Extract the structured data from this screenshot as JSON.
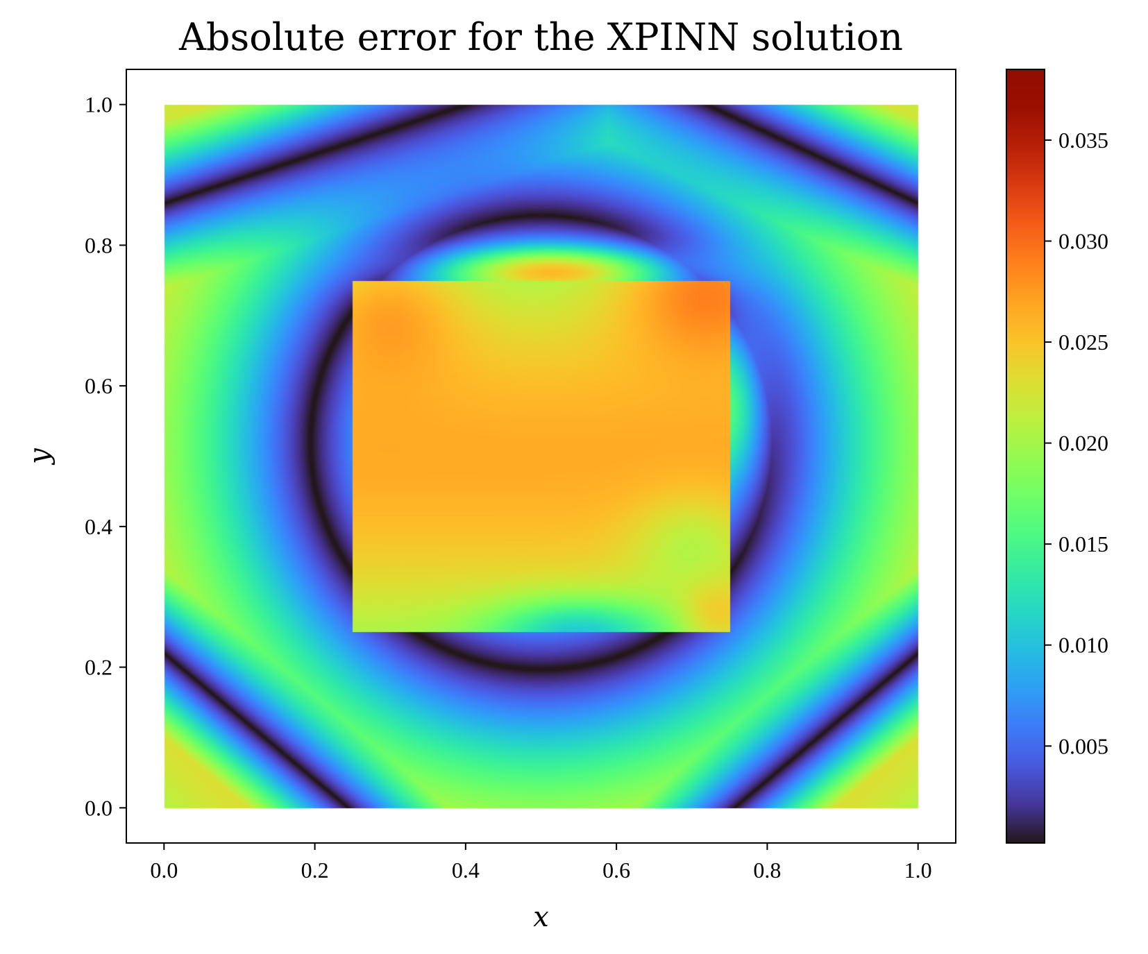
{
  "chart_data": {
    "type": "heatmap",
    "title": "Absolute error for the XPINN solution",
    "xlabel": "x",
    "ylabel": "y",
    "xlim": [
      -0.05,
      1.05
    ],
    "ylim": [
      -0.05,
      1.05
    ],
    "x_ticks": [
      "0.0",
      "0.2",
      "0.4",
      "0.6",
      "0.8",
      "1.0"
    ],
    "y_ticks": [
      "0.0",
      "0.2",
      "0.4",
      "0.6",
      "0.8",
      "1.0"
    ],
    "domain": {
      "x": [
        0,
        1
      ],
      "y": [
        0,
        1
      ]
    },
    "subdomain": {
      "x": [
        0.25,
        0.75
      ],
      "y": [
        0.25,
        0.75
      ]
    },
    "colormap": "turbo",
    "colorbar": {
      "range": [
        0.0002,
        0.0385
      ],
      "ticks": [
        "0.005",
        "0.010",
        "0.015",
        "0.020",
        "0.025",
        "0.030",
        "0.035"
      ]
    },
    "grid": false
  }
}
